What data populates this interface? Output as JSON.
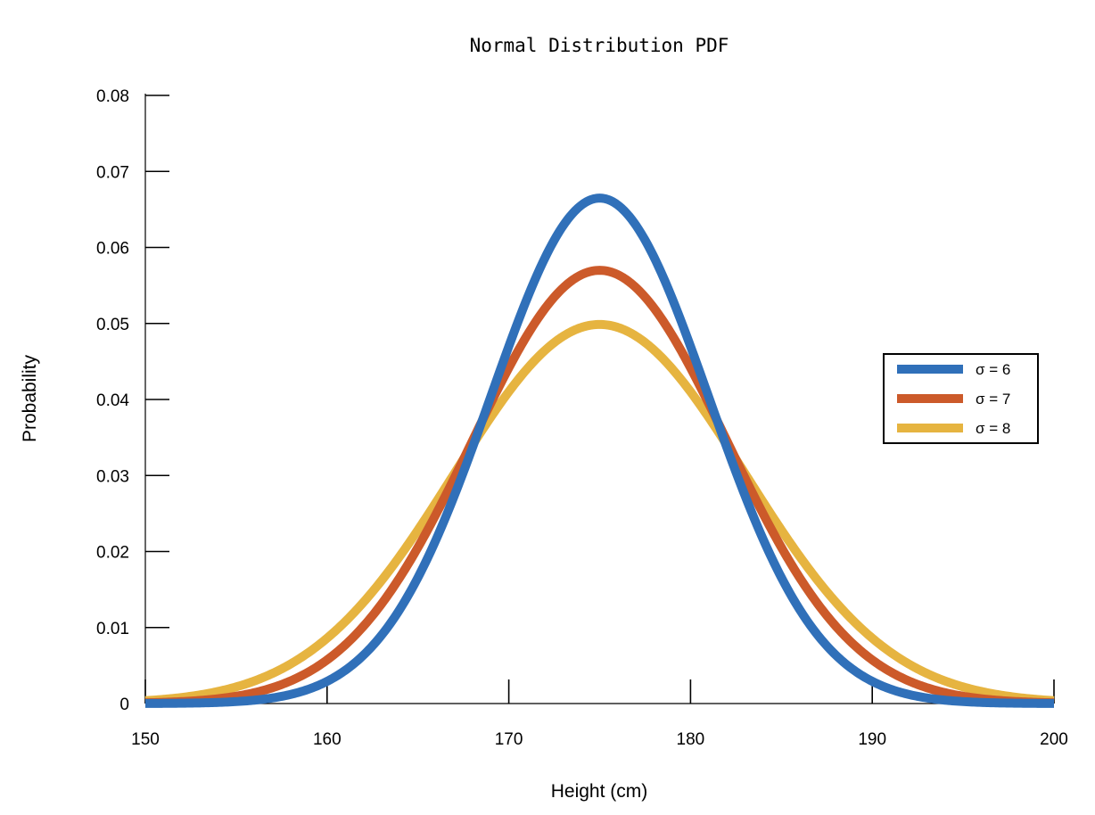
{
  "chart_data": {
    "type": "line",
    "title": "Normal Distribution PDF",
    "xlabel": "Height (cm)",
    "ylabel": "Probability",
    "xlim": [
      150,
      200
    ],
    "ylim": [
      0,
      0.08
    ],
    "x_ticks": [
      150,
      160,
      170,
      180,
      190,
      200
    ],
    "x_tick_labels": [
      "150",
      "160",
      "170",
      "180",
      "190",
      "200"
    ],
    "y_ticks": [
      0,
      0.01,
      0.02,
      0.03,
      0.04,
      0.05,
      0.06,
      0.07,
      0.08
    ],
    "y_tick_labels": [
      "0",
      "0.01",
      "0.02",
      "0.03",
      "0.04",
      "0.05",
      "0.06",
      "0.07",
      "0.08"
    ],
    "grid": false,
    "legend_position": "right",
    "mean": 175,
    "series": [
      {
        "name": "σ = 6",
        "sigma": 6,
        "color": "#3070B9",
        "peak": 0.0665
      },
      {
        "name": "σ = 7",
        "sigma": 7,
        "color": "#CC5A2A",
        "peak": 0.057
      },
      {
        "name": "σ = 8",
        "sigma": 8,
        "color": "#E6B440",
        "peak": 0.0499
      }
    ]
  }
}
